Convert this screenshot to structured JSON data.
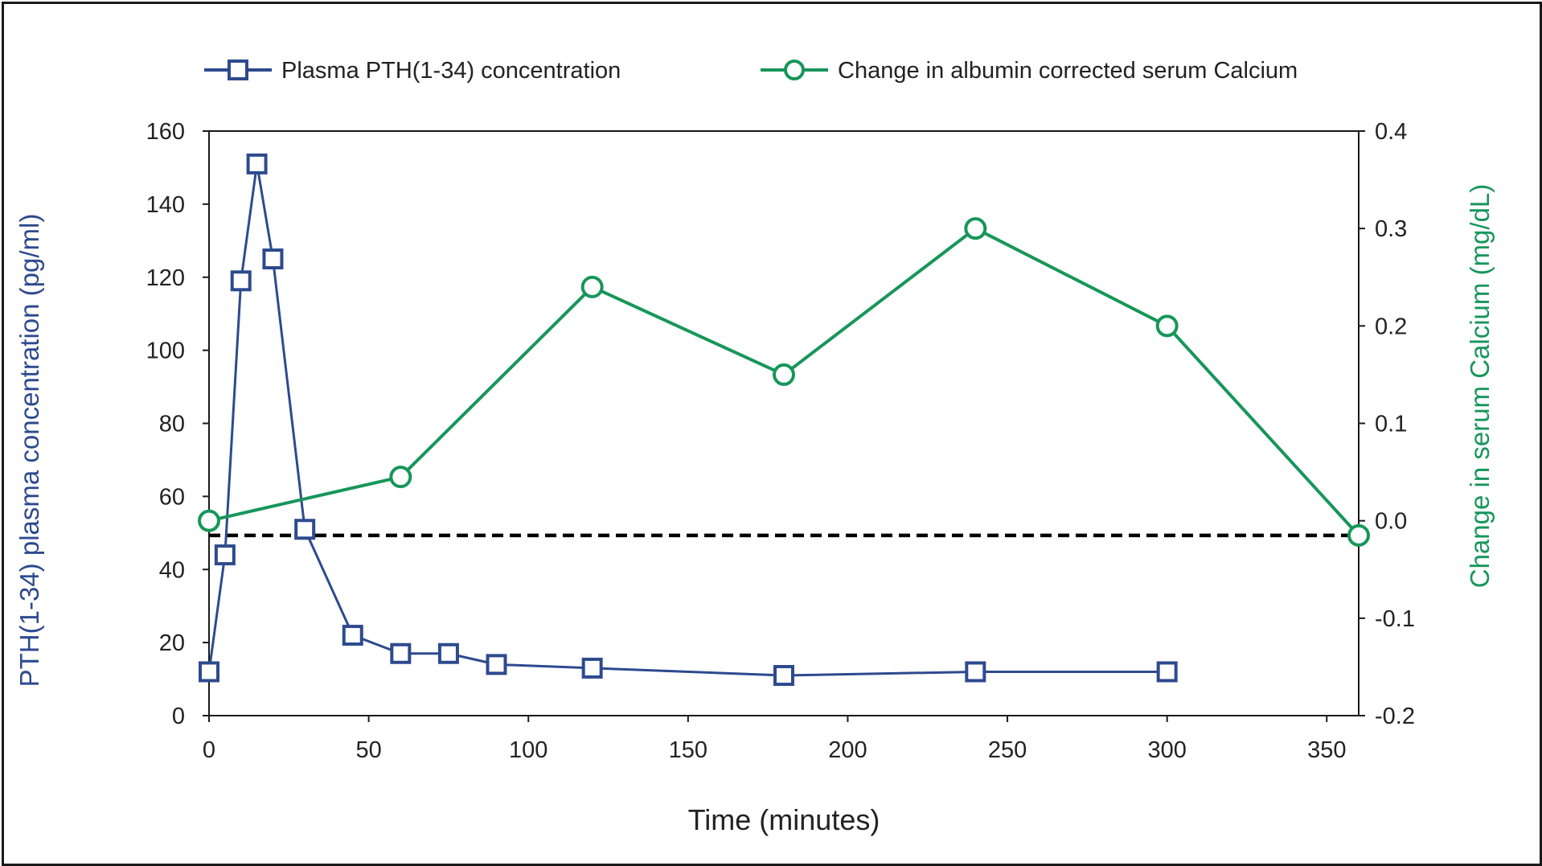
{
  "chart_data": {
    "type": "line",
    "title": "",
    "xlabel": "Time (minutes)",
    "xlim": [
      0,
      360
    ],
    "x_ticks": [
      "0",
      "50",
      "100",
      "150",
      "200",
      "250",
      "300",
      "350"
    ],
    "y_left": {
      "label": "PTH(1-34) plasma concentration (pg/ml)",
      "ylim": [
        0,
        160
      ],
      "ticks": [
        "0",
        "20",
        "40",
        "60",
        "80",
        "100",
        "120",
        "140",
        "160"
      ]
    },
    "y_right": {
      "label": "Change in serum Calcium (mg/dL)",
      "ylim": [
        -0.2,
        0.4
      ],
      "ticks": [
        "-0.2",
        "-0.1",
        "0.0",
        "0.1",
        "0.2",
        "0.3",
        "0.4"
      ]
    },
    "reference_line": {
      "axis": "right",
      "y": -0.015,
      "style": "dashed"
    },
    "series": [
      {
        "name": "Plasma PTH(1-34) concentration",
        "axis": "left",
        "marker": "square",
        "color": "#2e4a8e",
        "x": [
          0,
          5,
          10,
          15,
          20,
          30,
          45,
          60,
          75,
          90,
          120,
          180,
          240,
          300
        ],
        "y": [
          12,
          44,
          119,
          151,
          125,
          51,
          22,
          17,
          17,
          14,
          13,
          11,
          12,
          12
        ]
      },
      {
        "name": "Change in albumin corrected serum Calcium",
        "axis": "right",
        "marker": "circle",
        "color": "#17965a",
        "x": [
          0,
          60,
          120,
          180,
          240,
          300,
          360
        ],
        "y": [
          0.0,
          0.045,
          0.24,
          0.15,
          0.3,
          0.2,
          -0.015
        ]
      }
    ]
  }
}
